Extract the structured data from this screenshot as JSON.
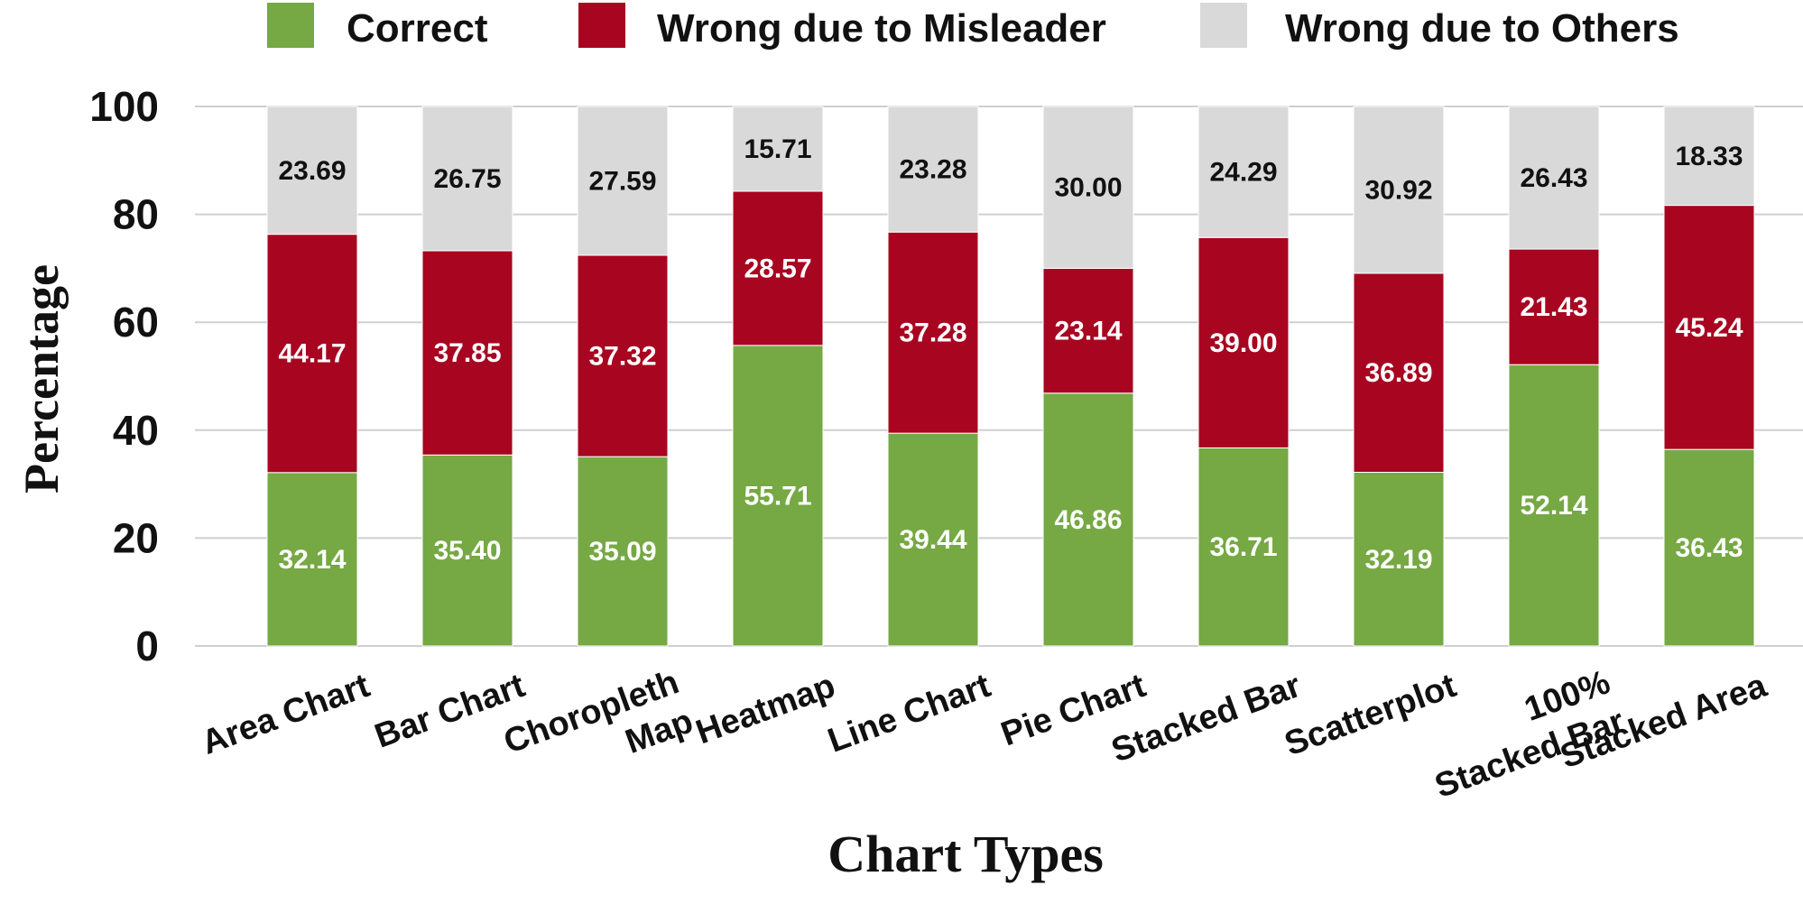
{
  "chart_data": {
    "type": "bar",
    "stacked": true,
    "xlabel": "Chart Types",
    "ylabel": "Percentage",
    "ylim": [
      0,
      100
    ],
    "yticks": [
      0,
      20,
      40,
      60,
      80,
      100
    ],
    "grid": "horizontal",
    "legend": "top",
    "categories": [
      [
        "Area Chart"
      ],
      [
        "Bar Chart"
      ],
      [
        "Choropleth",
        "Map"
      ],
      [
        "Heatmap"
      ],
      [
        "Line Chart"
      ],
      [
        "Pie Chart"
      ],
      [
        "Stacked Bar"
      ],
      [
        "Scatterplot"
      ],
      [
        "100%",
        "Stacked Bar"
      ],
      [
        "Stacked Area"
      ]
    ],
    "series": [
      {
        "name": "Correct",
        "color": "#76a844",
        "label_style": "light",
        "values": [
          32.14,
          35.4,
          35.09,
          55.71,
          39.44,
          46.86,
          36.71,
          32.19,
          52.14,
          36.43
        ]
      },
      {
        "name": "Wrong due to Misleader",
        "color": "#a80520",
        "label_style": "light",
        "values": [
          44.17,
          37.85,
          37.32,
          28.57,
          37.28,
          23.14,
          39.0,
          36.89,
          21.43,
          45.24
        ]
      },
      {
        "name": "Wrong due to Others",
        "color": "#d9d9d9",
        "label_style": "dark",
        "values": [
          23.69,
          26.75,
          27.59,
          15.71,
          23.28,
          30.0,
          24.29,
          30.92,
          26.43,
          18.33
        ]
      }
    ]
  }
}
